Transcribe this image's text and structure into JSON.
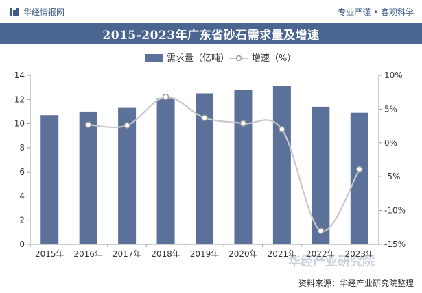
{
  "header": {
    "brand": "华经情报网",
    "tagline": "专业严谨 • 客观科学"
  },
  "chart_data": {
    "type": "bar",
    "title": "2015-2023年广东省砂石需求量及增速",
    "categories": [
      "2015年",
      "2016年",
      "2017年",
      "2018年",
      "2019年",
      "2020年",
      "2021年",
      "2022年",
      "2023年"
    ],
    "series": [
      {
        "name": "需求量（亿吨）",
        "type": "bar",
        "axis": "left",
        "color": "#5c7199",
        "values": [
          10.7,
          11.0,
          11.3,
          12.1,
          12.5,
          12.8,
          13.1,
          11.4,
          10.9
        ]
      },
      {
        "name": "增速（%）",
        "type": "line",
        "axis": "right",
        "color": "#c8c8c8",
        "values": [
          null,
          2.7,
          2.6,
          6.8,
          3.7,
          2.9,
          2.0,
          -13.0,
          -3.9
        ]
      }
    ],
    "y_left": {
      "min": 0,
      "max": 14,
      "ticks": [
        "0",
        "2",
        "4",
        "6",
        "8",
        "10",
        "12",
        "14"
      ]
    },
    "y_right": {
      "min": -15,
      "max": 10,
      "ticks": [
        "-15%",
        "-10%",
        "-5%",
        "0%",
        "5%",
        "10%"
      ]
    },
    "legend_position": "top",
    "grid": false
  },
  "footer": {
    "source": "资料来源：华经产业研究院整理",
    "watermark": "华经产业研究院"
  }
}
